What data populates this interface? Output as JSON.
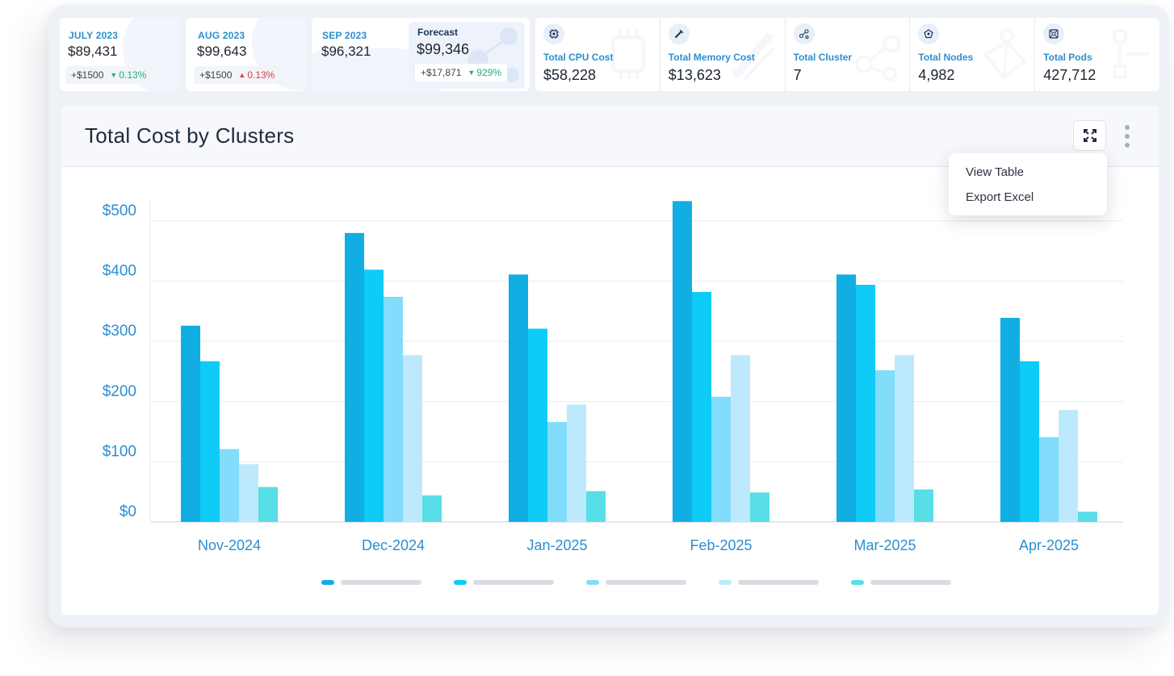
{
  "month_cards": [
    {
      "label": "JULY 2023",
      "value": "$89,431",
      "delta": "+$1500",
      "trend": "down",
      "pct": "0.13%"
    },
    {
      "label": "AUG 2023",
      "value": "$99,643",
      "delta": "+$1500",
      "trend": "up",
      "pct": "0.13%"
    },
    {
      "label": "SEP 2023",
      "value": "$96,321"
    }
  ],
  "forecast": {
    "label": "Forecast",
    "value": "$99,346",
    "delta": "+$17,871",
    "trend": "down",
    "pct": "929%"
  },
  "kpis": [
    {
      "label": "Total CPU Cost",
      "value": "$58,228",
      "icon": "cpu-icon"
    },
    {
      "label": "Total Memory Cost",
      "value": "$13,623",
      "icon": "memory-icon"
    },
    {
      "label": "Total Cluster",
      "value": "7",
      "icon": "cluster-icon"
    },
    {
      "label": "Total Nodes",
      "value": "4,982",
      "icon": "nodes-icon"
    },
    {
      "label": "Total Pods",
      "value": "427,712",
      "icon": "pods-icon"
    }
  ],
  "chart_panel": {
    "title": "Total Cost by Clusters",
    "menu": [
      "View Table",
      "Export Excel"
    ]
  },
  "colors": {
    "accent": "#2b8fd0",
    "series": [
      "#10aee3",
      "#0ecbf7",
      "#82dcfb",
      "#bce9fc",
      "#57dee6"
    ],
    "trend_down": "#1fb07a",
    "trend_up": "#e03a3a"
  },
  "chart_data": {
    "type": "bar",
    "title": "Total Cost by Clusters",
    "categories": [
      "Nov-2024",
      "Dec-2024",
      "Jan-2025",
      "Feb-2025",
      "Mar-2025",
      "Apr-2025"
    ],
    "series": [
      {
        "values": [
          326,
          480,
          411,
          533,
          411,
          339
        ]
      },
      {
        "values": [
          267,
          419,
          321,
          382,
          394,
          267
        ]
      },
      {
        "values": [
          121,
          374,
          166,
          208,
          252,
          141
        ]
      },
      {
        "values": [
          96,
          277,
          195,
          277,
          277,
          186
        ]
      },
      {
        "values": [
          58,
          44,
          51,
          49,
          54,
          17
        ]
      }
    ],
    "yticks": [
      "$0",
      "$100",
      "$200",
      "$300",
      "$400",
      "$500"
    ],
    "ylim": [
      0,
      520
    ],
    "grid": true,
    "legend": "bottom"
  }
}
